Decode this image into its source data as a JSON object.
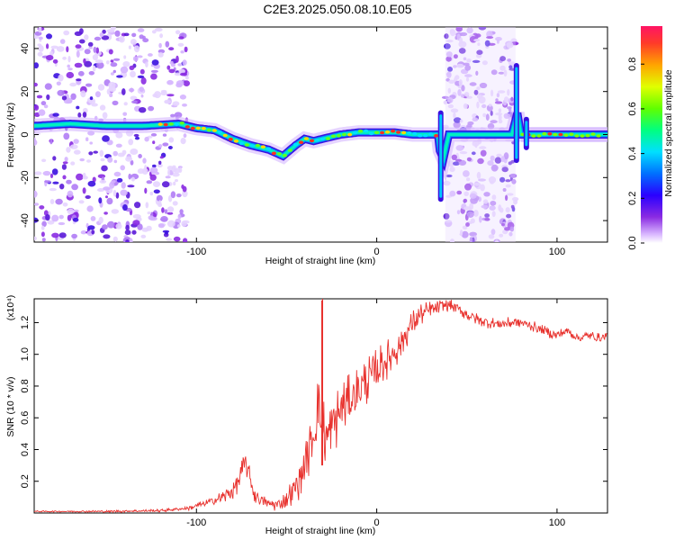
{
  "title": "C2E3.2025.050.08.10.E05",
  "chart_data": [
    {
      "type": "heatmap",
      "xlabel": "Height of straight line (km)",
      "ylabel": "Frequency (Hz)",
      "xlim": [
        -190,
        128
      ],
      "ylim": [
        -50,
        50
      ],
      "x_ticks": [
        -100,
        0,
        100
      ],
      "y_ticks": [
        -40,
        -20,
        0,
        20,
        40
      ],
      "colorbar": {
        "label": "Normalized spectral amplitude",
        "range": [
          0,
          0.97
        ],
        "ticks": [
          0.0,
          0.2,
          0.4,
          0.6,
          0.8
        ],
        "tick_labels": [
          "0.0",
          "0.2",
          "0.4",
          "0.6",
          "0.8"
        ]
      },
      "ridge": {
        "x": [
          -190,
          -170,
          -150,
          -130,
          -110,
          -100,
          -90,
          -80,
          -70,
          -60,
          -52,
          -45,
          -40,
          -35,
          -30,
          -25,
          -20,
          -10,
          0,
          10,
          20,
          30,
          34,
          36,
          40,
          60,
          75,
          78,
          80,
          85,
          100,
          128
        ],
        "y": [
          4,
          5,
          4,
          4,
          5,
          3,
          2,
          -2,
          -5,
          -7,
          -10,
          -5,
          -2,
          -3,
          -2,
          -1,
          0,
          1,
          1,
          1,
          0,
          0,
          0,
          -15,
          0,
          0,
          0,
          10,
          0,
          0,
          0,
          0
        ]
      },
      "noise_regions": [
        [
          -190,
          -105
        ],
        [
          38,
          77
        ]
      ],
      "spikes": [
        {
          "x": 35.5,
          "y_min": -30,
          "y_max": 10
        },
        {
          "x": 77.5,
          "y_min": -12,
          "y_max": 32
        },
        {
          "x": 83,
          "y_min": -6,
          "y_max": 7
        }
      ]
    },
    {
      "type": "line",
      "xlabel": "Height of straight line (km)",
      "ylabel": "SNR (10 * v/v)",
      "y_multiplier": "(x10⁴)",
      "xlim": [
        -190,
        128
      ],
      "ylim": [
        0,
        1.35
      ],
      "x_ticks": [
        -100,
        0,
        100
      ],
      "y_ticks": [
        0.2,
        0.4,
        0.6,
        0.8,
        1.0,
        1.2
      ],
      "y_tick_labels": [
        "0.2",
        "0.4",
        "0.6",
        "0.8",
        "1.0",
        "1.2"
      ],
      "color": "#e8322e",
      "x": [
        -190,
        -150,
        -120,
        -105,
        -95,
        -85,
        -80,
        -76,
        -73,
        -71,
        -68,
        -64,
        -60,
        -56,
        -52,
        -48,
        -44,
        -40,
        -37,
        -34,
        -33,
        -31,
        -28,
        -24,
        -20,
        -14,
        -8,
        -2,
        4,
        10,
        16,
        20,
        24,
        30,
        36,
        40,
        46,
        50,
        56,
        62,
        68,
        74,
        80,
        86,
        92,
        100,
        106,
        112,
        118,
        124,
        128
      ],
      "y": [
        0.01,
        0.01,
        0.015,
        0.03,
        0.06,
        0.1,
        0.14,
        0.22,
        0.32,
        0.25,
        0.12,
        0.08,
        0.06,
        0.05,
        0.07,
        0.12,
        0.18,
        0.3,
        0.4,
        0.55,
        0.7,
        0.6,
        0.45,
        0.55,
        0.65,
        0.72,
        0.8,
        0.88,
        0.95,
        1.02,
        1.12,
        1.2,
        1.25,
        1.28,
        1.3,
        1.31,
        1.28,
        1.25,
        1.22,
        1.2,
        1.19,
        1.2,
        1.2,
        1.18,
        1.15,
        1.12,
        1.15,
        1.1,
        1.12,
        1.1,
        1.12
      ],
      "noise_amplitude": [
        [
          -190,
          0.004
        ],
        [
          -110,
          0.01
        ],
        [
          -90,
          0.03
        ],
        [
          -75,
          0.08
        ],
        [
          -60,
          0.03
        ],
        [
          -50,
          0.06
        ],
        [
          -40,
          0.15
        ],
        [
          -30,
          0.22
        ],
        [
          -20,
          0.18
        ],
        [
          -5,
          0.15
        ],
        [
          10,
          0.12
        ],
        [
          20,
          0.08
        ],
        [
          40,
          0.04
        ],
        [
          128,
          0.03
        ]
      ],
      "spike_markers": [
        {
          "x": -30,
          "y": 1.35
        },
        {
          "x": -30.5,
          "y": 1.34
        }
      ]
    }
  ]
}
